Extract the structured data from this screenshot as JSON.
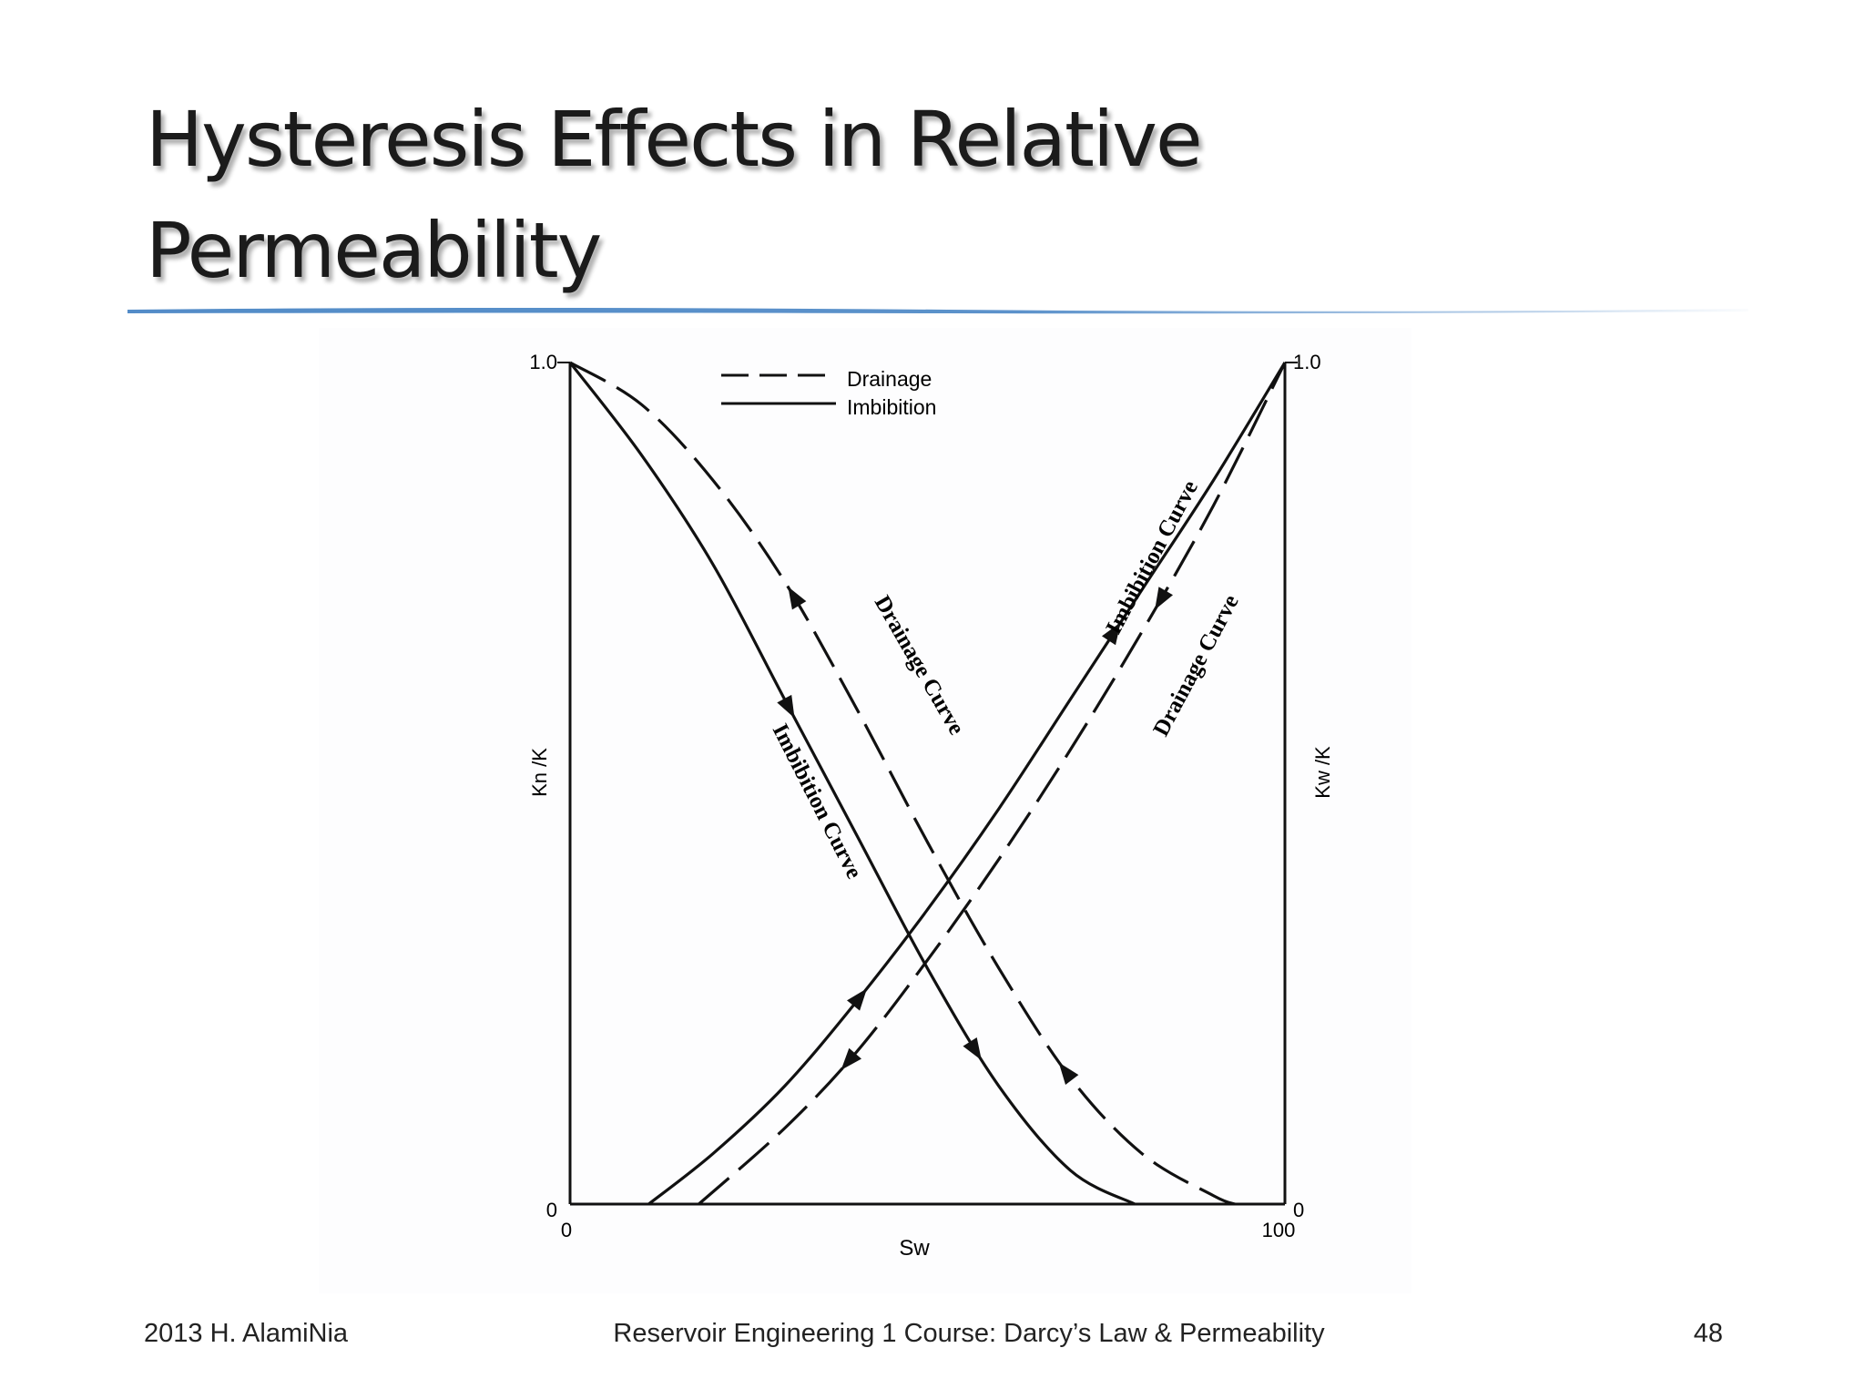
{
  "slide": {
    "title_line1": "Hysteresis Effects in Relative",
    "title_line2": "Permeability",
    "footer_left": "2013 H. AlamiNia",
    "footer_center": "Reservoir Engineering 1 Course: Darcy’s Law & Permeability",
    "footer_right": "48",
    "accent_color": "#4a86c5"
  },
  "chart_data": {
    "type": "line",
    "xlabel": "Sw",
    "ylabel_left": "Kn /K",
    "ylabel_right": "Kw /K",
    "xlim": [
      0,
      100
    ],
    "ylim": [
      0,
      1.0
    ],
    "x_ticks": [
      "0",
      "100"
    ],
    "y_ticks_left": [
      "0",
      "1.0"
    ],
    "y_ticks_right": [
      "0",
      "1.0"
    ],
    "legend": {
      "position": "top-left",
      "entries": [
        {
          "label": "Drainage",
          "style": "dashed"
        },
        {
          "label": "Imbibition",
          "style": "solid"
        }
      ]
    },
    "annotations": [
      "Drainage Curve",
      "Imbibition Curve",
      "Drainage Curve",
      "Imbibition Curve"
    ],
    "series": [
      {
        "style": "dashed",
        "x": [
          0,
          10,
          20,
          30,
          40,
          50,
          60,
          70,
          80,
          90,
          93
        ],
        "y": [
          1.0,
          0.95,
          0.86,
          0.74,
          0.59,
          0.43,
          0.28,
          0.15,
          0.06,
          0.01,
          0
        ]
      },
      {
        "style": "solid",
        "x": [
          0,
          10,
          20,
          30,
          40,
          50,
          60,
          70,
          79
        ],
        "y": [
          1.0,
          0.89,
          0.76,
          0.6,
          0.44,
          0.28,
          0.14,
          0.04,
          0
        ]
      },
      {
        "style": "solid",
        "x": [
          11,
          20,
          30,
          40,
          50,
          60,
          70,
          80,
          90,
          100
        ],
        "y": [
          0,
          0.06,
          0.14,
          0.24,
          0.35,
          0.47,
          0.6,
          0.73,
          0.86,
          1.0
        ]
      },
      {
        "style": "dashed",
        "x": [
          18,
          30,
          40,
          50,
          60,
          70,
          80,
          90,
          100
        ],
        "y": [
          0,
          0.09,
          0.18,
          0.29,
          0.41,
          0.54,
          0.68,
          0.83,
          1.0
        ]
      }
    ]
  }
}
